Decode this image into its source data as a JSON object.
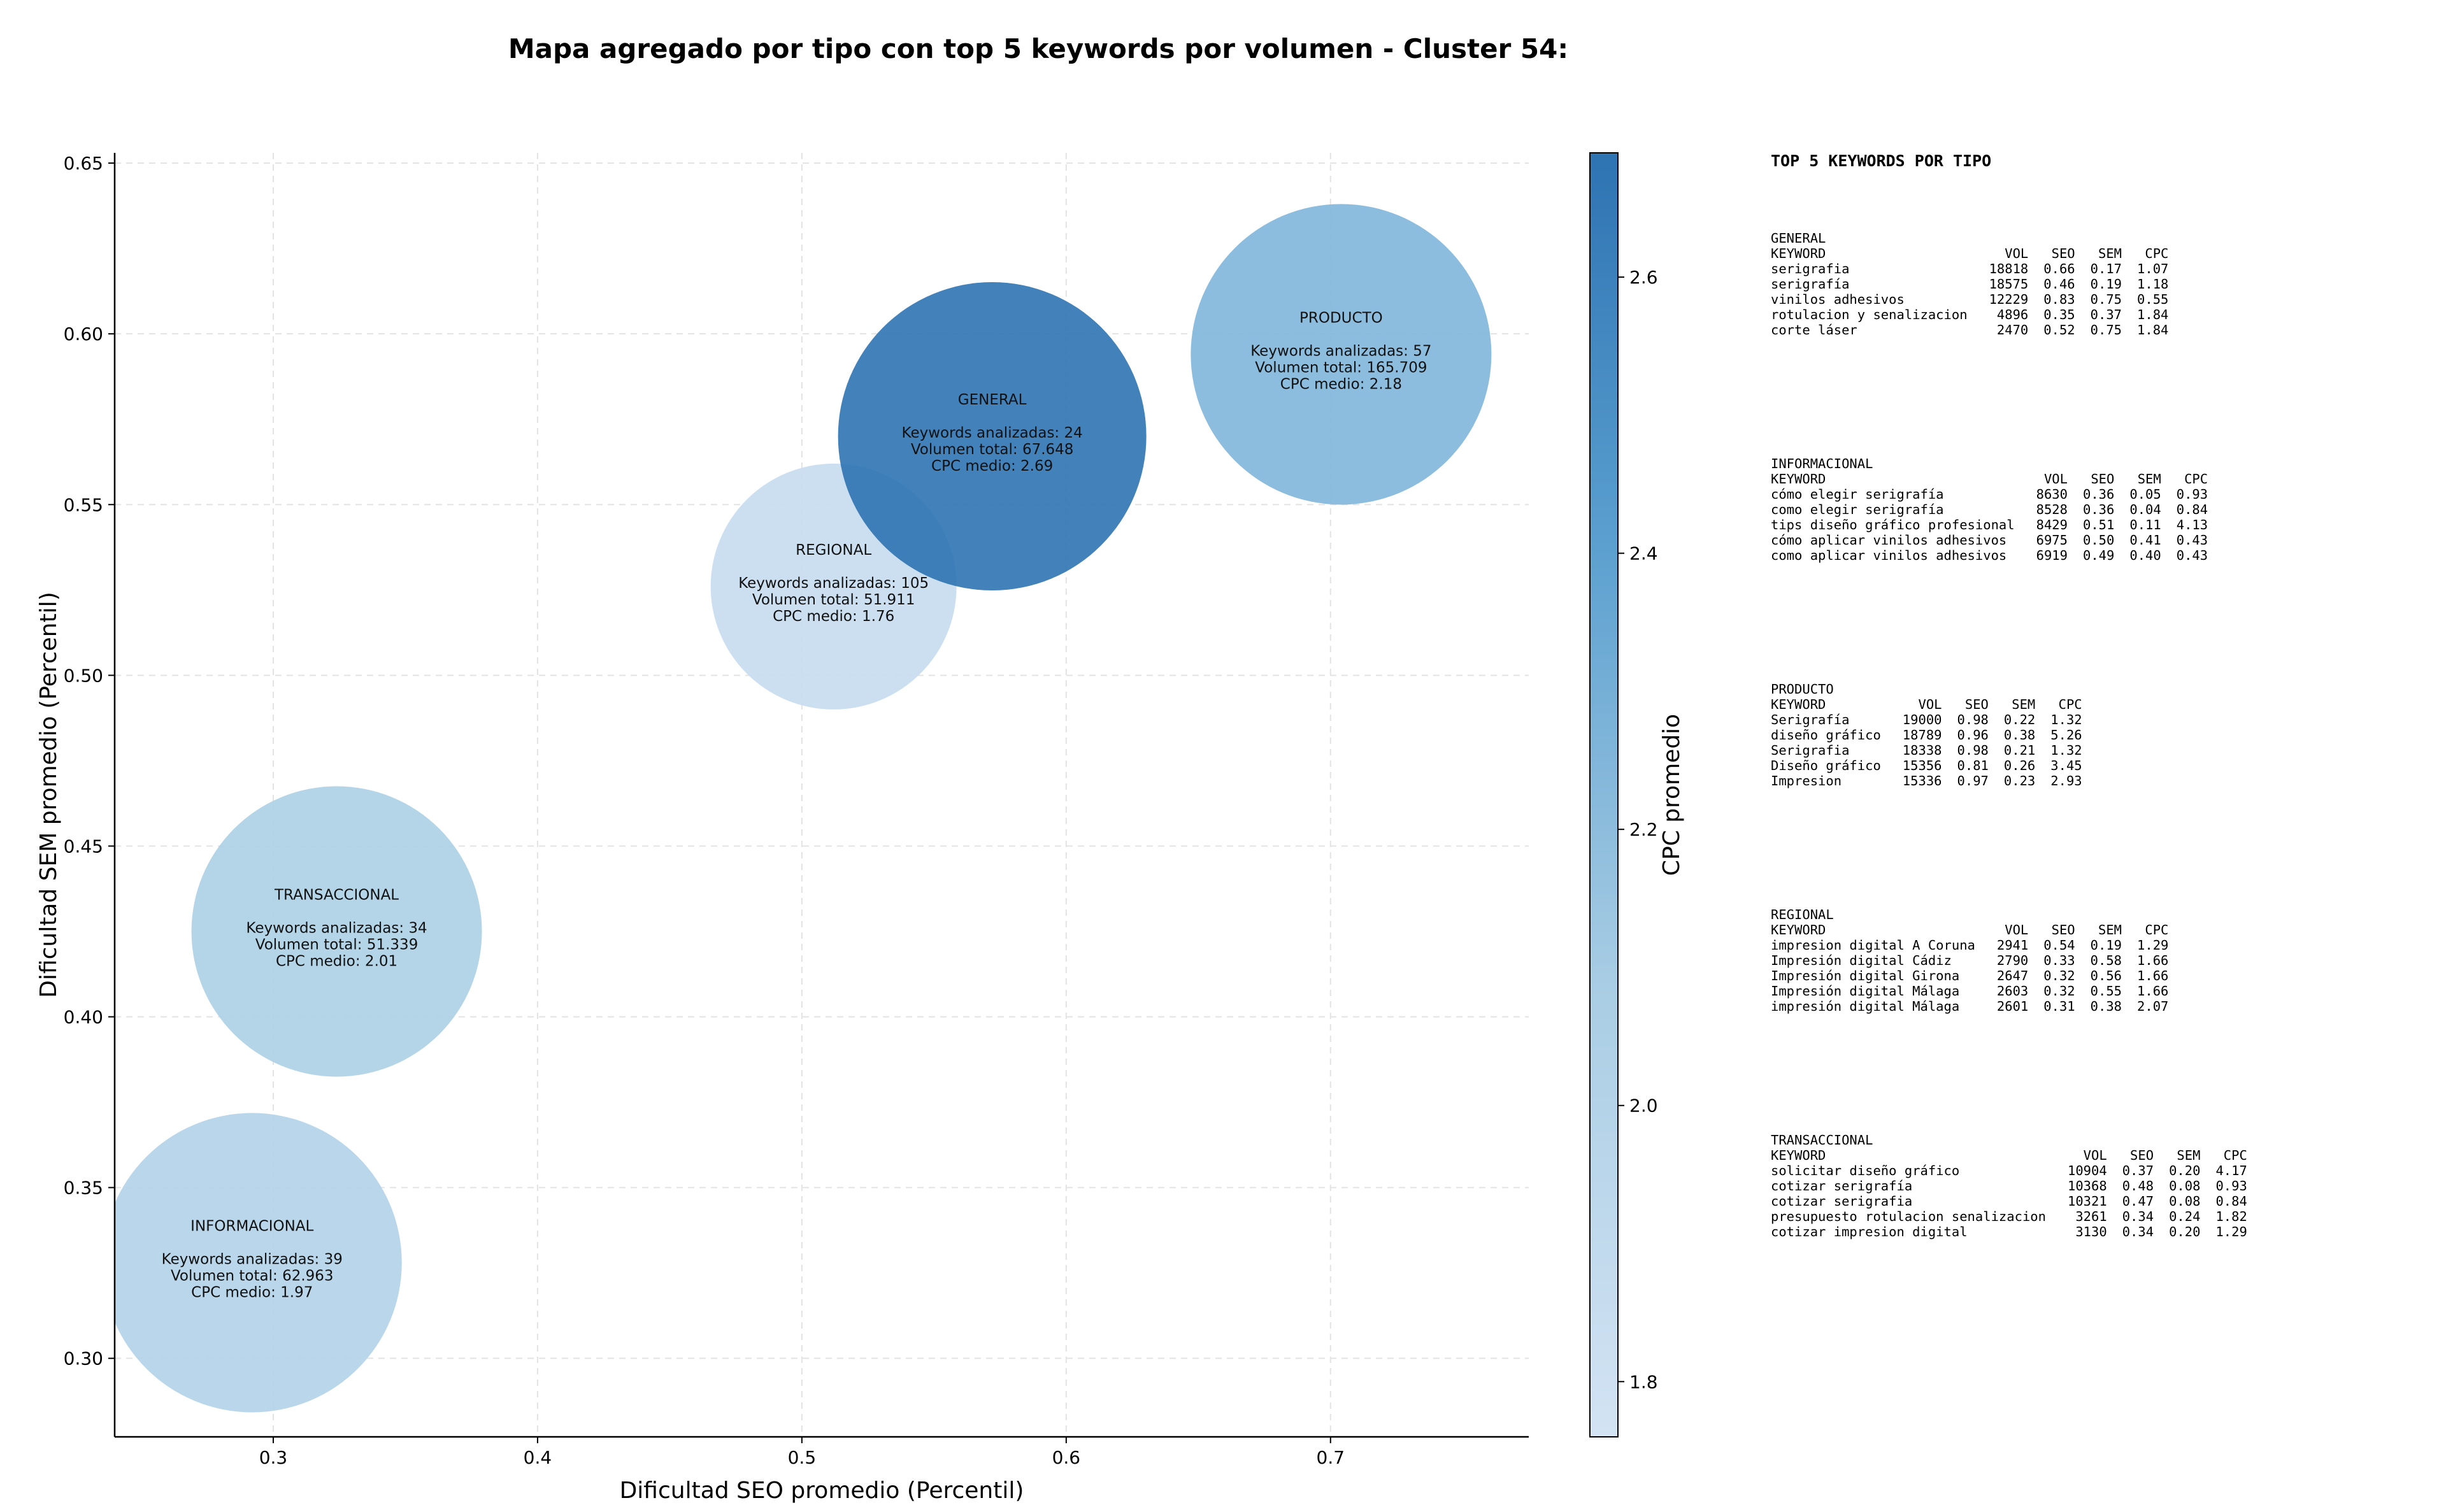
{
  "title": "Mapa agregado por tipo con top 5 keywords por volumen - Cluster 54:",
  "chart_data": {
    "type": "scatter",
    "xlabel": "Dificultad SEO promedio (Percentil)",
    "ylabel": "Dificultad SEM promedio (Percentil)",
    "xlim": [
      0.24,
      0.775
    ],
    "ylim": [
      0.277,
      0.653
    ],
    "xticks": [
      0.3,
      0.4,
      0.5,
      0.6,
      0.7
    ],
    "yticks": [
      0.3,
      0.35,
      0.4,
      0.45,
      0.5,
      0.55,
      0.6,
      0.65
    ],
    "grid": true,
    "colorbar": {
      "label": "CPC promedio",
      "min": 1.76,
      "max": 2.69,
      "ticks": [
        1.8,
        2.0,
        2.2,
        2.4,
        2.6
      ],
      "color_low": "#d3e3f3",
      "color_high": "#2e73b2"
    },
    "points": [
      {
        "name": "INFORMACIONAL",
        "x": 0.292,
        "y": 0.328,
        "keywords_label": "Keywords analizadas: 39",
        "volume_label": "Volumen total: 62.963",
        "cpc_label": "CPC medio: 1.97",
        "cpc": 1.97,
        "color": "#b1d2e8"
      },
      {
        "name": "TRANSACCIONAL",
        "x": 0.324,
        "y": 0.425,
        "keywords_label": "Keywords analizadas: 34",
        "volume_label": "Volumen total: 51.339",
        "cpc_label": "CPC medio: 2.01",
        "cpc": 2.01,
        "color": "#acd0e6"
      },
      {
        "name": "REGIONAL",
        "x": 0.512,
        "y": 0.526,
        "keywords_label": "Keywords analizadas: 105",
        "volume_label": "Volumen total: 51.911",
        "cpc_label": "CPC medio: 1.76",
        "cpc": 1.76,
        "color": "#c7dcef"
      },
      {
        "name": "GENERAL",
        "x": 0.572,
        "y": 0.57,
        "keywords_label": "Keywords analizadas: 24",
        "volume_label": "Volumen total: 67.648",
        "cpc_label": "CPC medio: 2.69",
        "cpc": 2.69,
        "color": "#2e73b2"
      },
      {
        "name": "PRODUCTO",
        "x": 0.704,
        "y": 0.594,
        "keywords_label": "Keywords analizadas: 57",
        "volume_label": "Volumen total: 165.709",
        "cpc_label": "CPC medio: 2.18",
        "cpc": 2.18,
        "color": "#7fb6da"
      }
    ]
  },
  "top_keywords": {
    "title": "TOP 5 KEYWORDS POR TIPO",
    "header": [
      "KEYWORD",
      "VOL",
      "SEO",
      "SEM",
      "CPC"
    ],
    "groups": [
      {
        "name": "GENERAL",
        "rows": [
          [
            "serigrafia",
            "18818",
            "0.66",
            "0.17",
            "1.07"
          ],
          [
            "serigrafía",
            "18575",
            "0.46",
            "0.19",
            "1.18"
          ],
          [
            "vinilos adhesivos",
            "12229",
            "0.83",
            "0.75",
            "0.55"
          ],
          [
            "rotulacion y senalizacion",
            "4896",
            "0.35",
            "0.37",
            "1.84"
          ],
          [
            "corte láser",
            "2470",
            "0.52",
            "0.75",
            "1.84"
          ]
        ]
      },
      {
        "name": "INFORMACIONAL",
        "rows": [
          [
            "cómo elegir serigrafía",
            "8630",
            "0.36",
            "0.05",
            "0.93"
          ],
          [
            "como elegir serigrafía",
            "8528",
            "0.36",
            "0.04",
            "0.84"
          ],
          [
            "tips diseño gráfico profesional",
            "8429",
            "0.51",
            "0.11",
            "4.13"
          ],
          [
            "cómo aplicar vinilos adhesivos",
            "6975",
            "0.50",
            "0.41",
            "0.43"
          ],
          [
            "como aplicar vinilos adhesivos",
            "6919",
            "0.49",
            "0.40",
            "0.43"
          ]
        ]
      },
      {
        "name": "PRODUCTO",
        "rows": [
          [
            "Serigrafía",
            "19000",
            "0.98",
            "0.22",
            "1.32"
          ],
          [
            "diseño gráfico",
            "18789",
            "0.96",
            "0.38",
            "5.26"
          ],
          [
            "Serigrafia",
            "18338",
            "0.98",
            "0.21",
            "1.32"
          ],
          [
            "Diseño gráfico",
            "15356",
            "0.81",
            "0.26",
            "3.45"
          ],
          [
            "Impresion",
            "15336",
            "0.97",
            "0.23",
            "2.93"
          ]
        ]
      },
      {
        "name": "REGIONAL",
        "rows": [
          [
            "impresion digital A Coruna",
            "2941",
            "0.54",
            "0.19",
            "1.29"
          ],
          [
            "Impresión digital Cádiz",
            "2790",
            "0.33",
            "0.58",
            "1.66"
          ],
          [
            "Impresión digital Girona",
            "2647",
            "0.32",
            "0.56",
            "1.66"
          ],
          [
            "Impresión digital Málaga",
            "2603",
            "0.32",
            "0.55",
            "1.66"
          ],
          [
            "impresión digital Málaga",
            "2601",
            "0.31",
            "0.38",
            "2.07"
          ]
        ]
      },
      {
        "name": "TRANSACCIONAL",
        "rows": [
          [
            "solicitar diseño gráfico",
            "10904",
            "0.37",
            "0.20",
            "4.17"
          ],
          [
            "cotizar serigrafía",
            "10368",
            "0.48",
            "0.08",
            "0.93"
          ],
          [
            "cotizar serigrafia",
            "10321",
            "0.47",
            "0.08",
            "0.84"
          ],
          [
            "presupuesto rotulacion senalizacion",
            "3261",
            "0.34",
            "0.24",
            "1.82"
          ],
          [
            "cotizar impresion digital",
            "3130",
            "0.34",
            "0.20",
            "1.29"
          ]
        ]
      }
    ]
  }
}
